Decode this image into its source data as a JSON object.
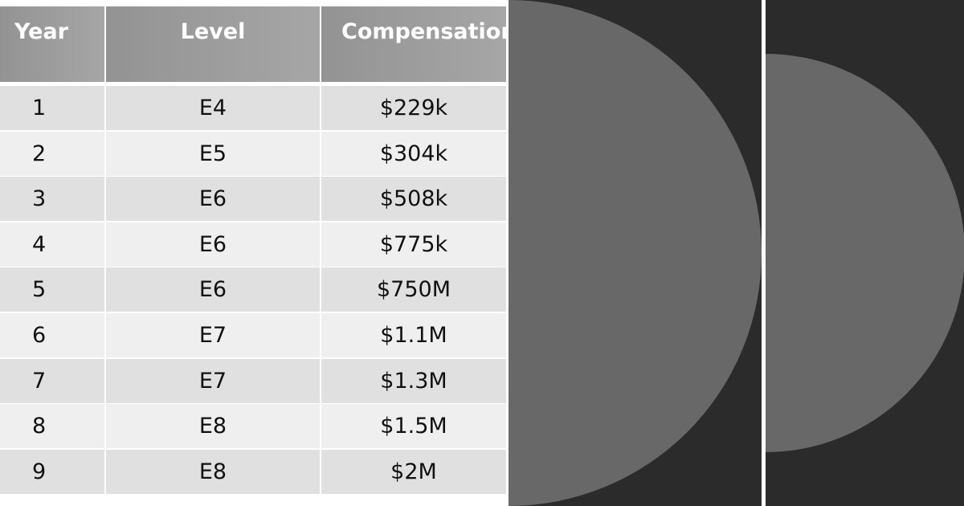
{
  "table": {
    "header": [
      "Year",
      "Level",
      "Compensation"
    ],
    "rows": [
      [
        "1",
        "E4",
        "$229k"
      ],
      [
        "2",
        "E5",
        "$304k"
      ],
      [
        "3",
        "E6",
        "$508k"
      ],
      [
        "4",
        "E6",
        "$775k"
      ],
      [
        "5",
        "E6",
        "$750M"
      ],
      [
        "6",
        "E7",
        "$1.1M"
      ],
      [
        "7",
        "E7",
        "$1.3M"
      ],
      [
        "8",
        "E8",
        "$1.5M"
      ],
      [
        "9",
        "E8",
        "$2M"
      ]
    ]
  }
}
